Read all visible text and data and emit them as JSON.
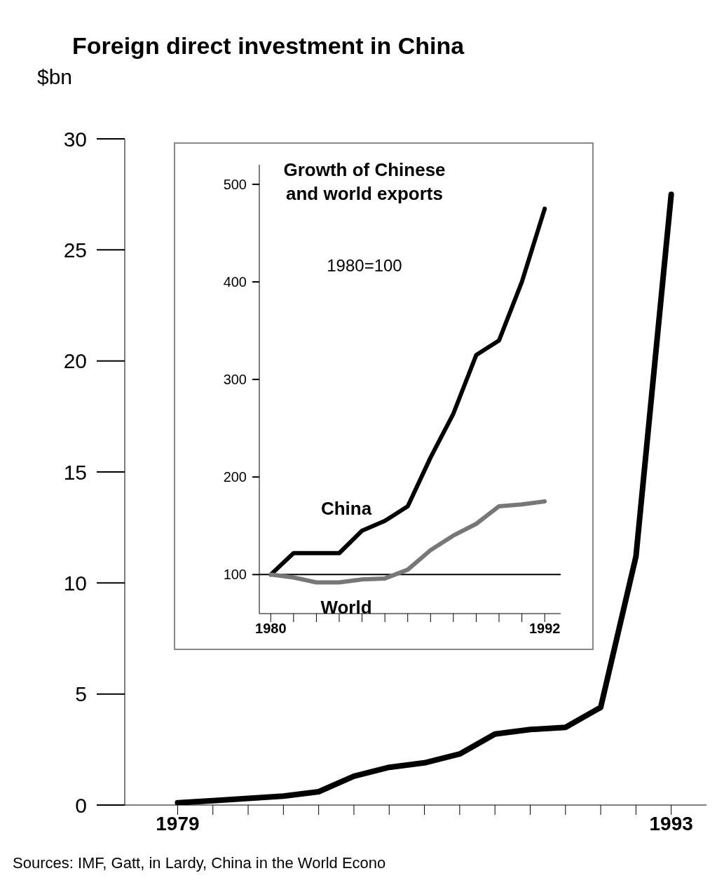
{
  "chart_data": [
    {
      "type": "line",
      "title": "Foreign direct investment in China",
      "ylabel": "$bn",
      "x": [
        1979,
        1980,
        1981,
        1982,
        1983,
        1984,
        1985,
        1986,
        1987,
        1988,
        1989,
        1990,
        1991,
        1992,
        1993
      ],
      "series": [
        {
          "color": "#000000",
          "values": [
            0.1,
            0.2,
            0.3,
            0.4,
            0.6,
            1.3,
            1.7,
            1.9,
            2.3,
            3.2,
            3.4,
            3.5,
            4.4,
            11.2,
            27.5
          ]
        }
      ],
      "xlim": [
        1977.5,
        1994
      ],
      "xticks": [
        1979,
        {
          "value": 1980,
          "label": null
        },
        {
          "value": 1981,
          "label": null
        },
        {
          "value": 1982,
          "label": null
        },
        {
          "value": 1983,
          "label": null
        },
        {
          "value": 1984,
          "label": null
        },
        {
          "value": 1985,
          "label": null
        },
        {
          "value": 1986,
          "label": null
        },
        {
          "value": 1987,
          "label": null
        },
        {
          "value": 1988,
          "label": null
        },
        {
          "value": 1989,
          "label": null
        },
        {
          "value": 1990,
          "label": null
        },
        {
          "value": 1991,
          "label": null
        },
        {
          "value": 1992,
          "label": null
        },
        1993
      ],
      "ylim": [
        0,
        30
      ],
      "yticks": [
        0,
        5,
        10,
        15,
        20,
        25,
        30
      ],
      "grid": false,
      "legend": false,
      "marker": "none",
      "line_style": "solid",
      "annotations": [
        "Sources: IMF, Gatt, in Lardy, China in the World Econo"
      ]
    },
    {
      "type": "line",
      "title": "Growth of Chinese and world exports",
      "subtitle": "1980=100",
      "x": [
        1980,
        1981,
        1982,
        1983,
        1984,
        1985,
        1986,
        1987,
        1988,
        1989,
        1990,
        1991,
        1992
      ],
      "series": [
        {
          "name": "China",
          "color": "#000000",
          "values": [
            100,
            122,
            122,
            122,
            145,
            155,
            170,
            220,
            265,
            325,
            340,
            400,
            475
          ]
        },
        {
          "name": "World",
          "color": "#777777",
          "values": [
            100,
            97,
            92,
            92,
            95,
            96,
            105,
            125,
            140,
            152,
            170,
            172,
            175
          ]
        }
      ],
      "xlim": [
        1979.5,
        1992.7
      ],
      "xticks": [
        1980,
        {
          "value": 1981,
          "label": null
        },
        {
          "value": 1982,
          "label": null
        },
        {
          "value": 1983,
          "label": null
        },
        {
          "value": 1984,
          "label": null
        },
        {
          "value": 1985,
          "label": null
        },
        {
          "value": 1986,
          "label": null
        },
        {
          "value": 1987,
          "label": null
        },
        {
          "value": 1988,
          "label": null
        },
        {
          "value": 1989,
          "label": null
        },
        {
          "value": 1990,
          "label": null
        },
        {
          "value": 1991,
          "label": null
        },
        1992
      ],
      "ylim": [
        60,
        520
      ],
      "yticks": [
        100,
        200,
        300,
        400,
        500
      ],
      "grid": false,
      "legend": false,
      "marker": "none",
      "line_style": "solid",
      "ref_lines": [
        {
          "axis": "y",
          "value": 100,
          "color": "#000000"
        }
      ]
    }
  ]
}
